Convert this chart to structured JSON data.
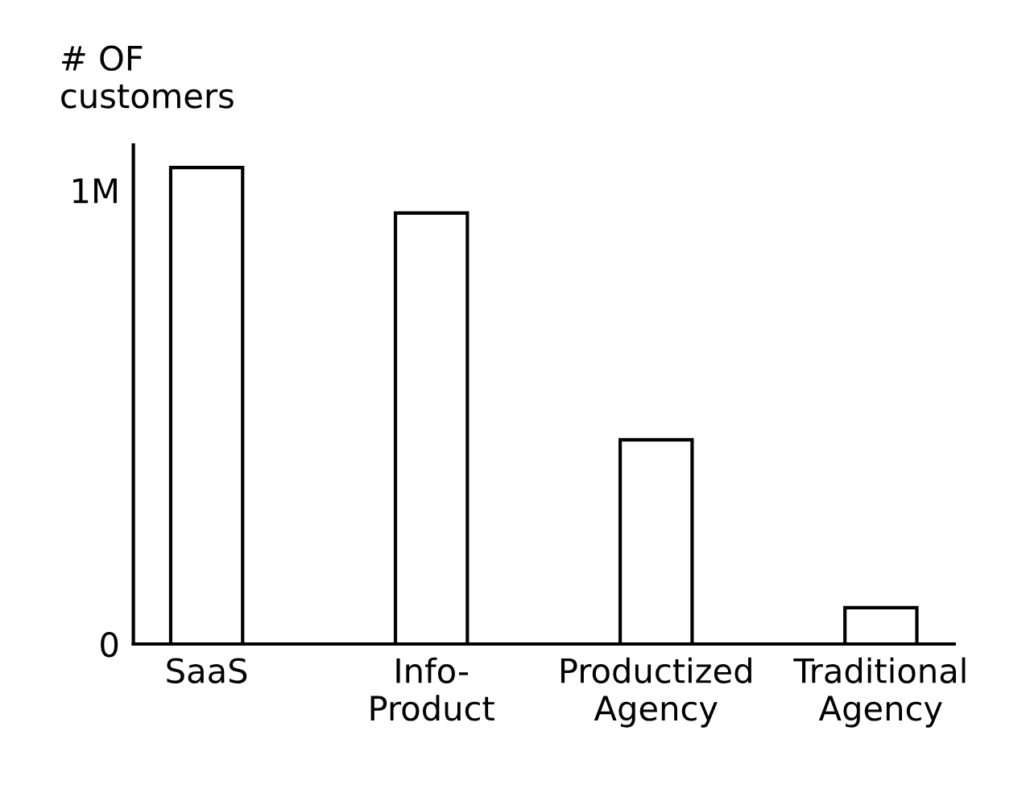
{
  "chart_data": {
    "type": "bar",
    "ylabel": "# OF\ncustomers",
    "categories": [
      "SaaS",
      "Info-\nProduct",
      "Productized\nAgency",
      "Traditional\nAgency"
    ],
    "values": [
      1050000,
      950000,
      450000,
      80000
    ],
    "color": "#ffffff",
    "ylim": [
      0,
      1100000
    ],
    "yticks": [
      0,
      {
        "value": 1000000,
        "label": "1M"
      }
    ],
    "grid": false
  }
}
